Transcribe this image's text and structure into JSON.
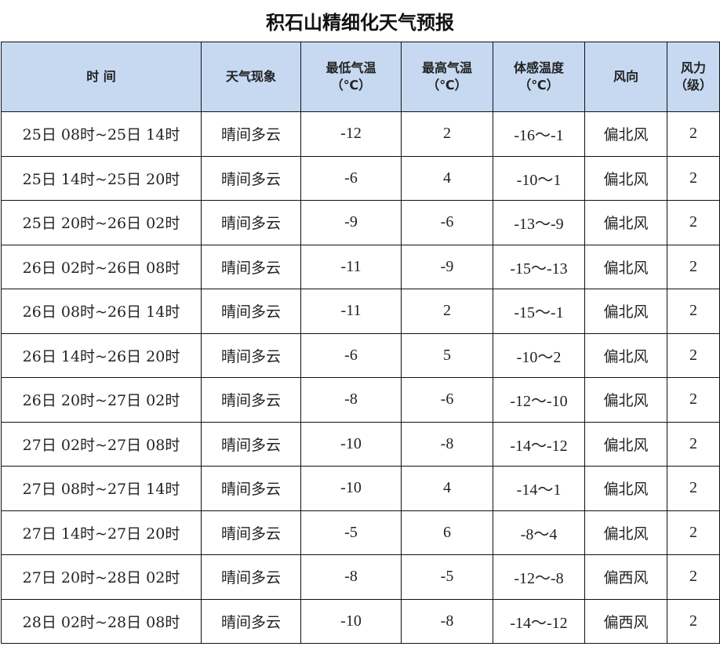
{
  "title": "积石山精细化天气预报",
  "headers": [
    {
      "line1": "时  间",
      "line2": ""
    },
    {
      "line1": "天气现象",
      "line2": ""
    },
    {
      "line1": "最低气温",
      "line2": "（℃）"
    },
    {
      "line1": "最高气温",
      "line2": "（℃）"
    },
    {
      "line1": "体感温度",
      "line2": "（℃）"
    },
    {
      "line1": "风向",
      "line2": ""
    },
    {
      "line1": "风力",
      "line2": "（级）"
    }
  ],
  "rows": [
    [
      "25日 08时~25日 14时",
      "晴间多云",
      "-12",
      "2",
      "-16～-1",
      "偏北风",
      "2"
    ],
    [
      "25日 14时~25日 20时",
      "晴间多云",
      "-6",
      "4",
      "-10～1",
      "偏北风",
      "2"
    ],
    [
      "25日 20时~26日 02时",
      "晴间多云",
      "-9",
      "-6",
      "-13～-9",
      "偏北风",
      "2"
    ],
    [
      "26日 02时~26日 08时",
      "晴间多云",
      "-11",
      "-9",
      "-15～-13",
      "偏北风",
      "2"
    ],
    [
      "26日 08时~26日 14时",
      "晴间多云",
      "-11",
      "2",
      "-15～-1",
      "偏北风",
      "2"
    ],
    [
      "26日 14时~26日 20时",
      "晴间多云",
      "-6",
      "5",
      "-10～2",
      "偏北风",
      "2"
    ],
    [
      "26日 20时~27日 02时",
      "晴间多云",
      "-8",
      "-6",
      "-12～-10",
      "偏北风",
      "2"
    ],
    [
      "27日 02时~27日 08时",
      "晴间多云",
      "-10",
      "-8",
      "-14～-12",
      "偏北风",
      "2"
    ],
    [
      "27日 08时~27日 14时",
      "晴间多云",
      "-10",
      "4",
      "-14～1",
      "偏北风",
      "2"
    ],
    [
      "27日 14时~27日 20时",
      "晴间多云",
      "-5",
      "6",
      "-8～4",
      "偏北风",
      "2"
    ],
    [
      "27日 20时~28日 02时",
      "晴间多云",
      "-8",
      "-5",
      "-12～-8",
      "偏西风",
      "2"
    ],
    [
      "28日 02时~28日 08时",
      "晴间多云",
      "-10",
      "-8",
      "-14～-12",
      "偏西风",
      "2"
    ]
  ],
  "colors": {
    "header_bg": "#c6d9f1",
    "border": "#111111"
  }
}
